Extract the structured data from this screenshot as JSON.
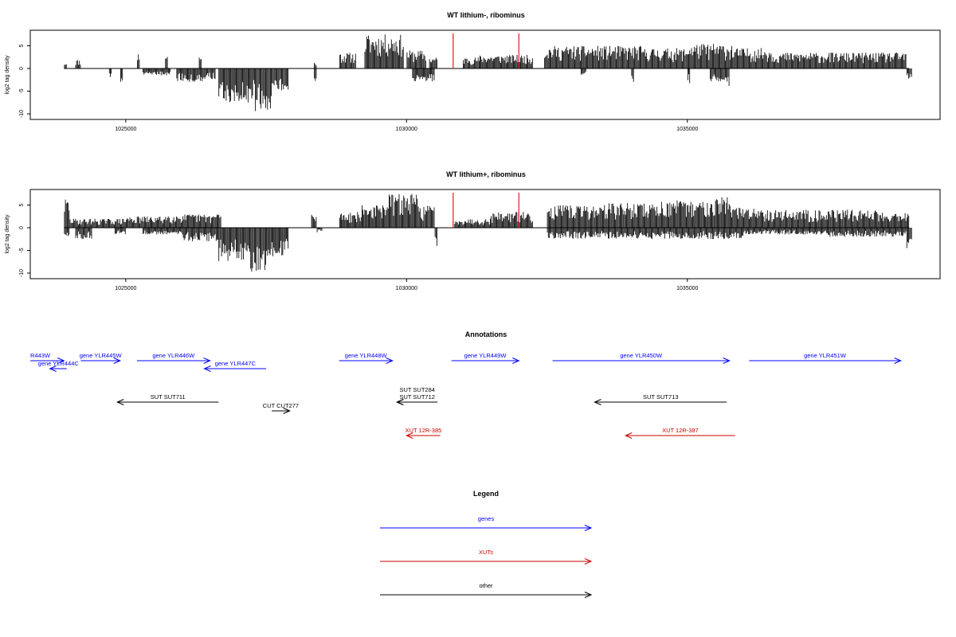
{
  "chart_data": [
    {
      "type": "bar",
      "title": "WT lithium-, ribominus",
      "ylabel": "log2 tag density",
      "xlabel": "",
      "xlim": [
        1023300,
        1039500
      ],
      "ylim": [
        -11,
        8.5
      ],
      "x_ticks": [
        "1025000",
        "1030000",
        "1035000"
      ],
      "y_ticks": [
        "5",
        "0",
        "-5",
        "-10"
      ],
      "grid": false,
      "markers": [
        1030830,
        1032000
      ],
      "forward": [
        [
          1023900,
          1023950,
          1.5
        ],
        [
          1024100,
          1024200,
          2.0
        ],
        [
          1025200,
          1025250,
          3.5
        ],
        [
          1025700,
          1025750,
          3.5
        ],
        [
          1026300,
          1026350,
          3.0
        ],
        [
          1028350,
          1028400,
          1.5
        ],
        [
          1028800,
          1029100,
          3.5
        ],
        [
          1029250,
          1029950,
          7.5
        ],
        [
          1030000,
          1030350,
          4.0
        ],
        [
          1030400,
          1030550,
          2.5
        ],
        [
          1031000,
          1031300,
          2.5
        ],
        [
          1031300,
          1031700,
          3.0
        ],
        [
          1031700,
          1032250,
          3.0
        ],
        [
          1032450,
          1033200,
          5.0
        ],
        [
          1033200,
          1034200,
          5.0
        ],
        [
          1034200,
          1035000,
          4.5
        ],
        [
          1035000,
          1035800,
          5.5
        ],
        [
          1035800,
          1036500,
          4.5
        ],
        [
          1036500,
          1037500,
          3.5
        ],
        [
          1037500,
          1038300,
          3.5
        ],
        [
          1038300,
          1038900,
          3.5
        ]
      ],
      "reverse": [
        [
          1024700,
          1024750,
          -2.0
        ],
        [
          1024900,
          1024950,
          -3.0
        ],
        [
          1025300,
          1025800,
          -1.5
        ],
        [
          1025900,
          1026400,
          -3.0
        ],
        [
          1026400,
          1026600,
          -2.5
        ],
        [
          1026650,
          1027300,
          -7.5
        ],
        [
          1027300,
          1027600,
          -9.5
        ],
        [
          1027600,
          1027900,
          -5.0
        ],
        [
          1028350,
          1028400,
          -4.0
        ],
        [
          1030100,
          1030500,
          -3.0
        ],
        [
          1033100,
          1033200,
          -1.5
        ],
        [
          1034000,
          1034050,
          -3.5
        ],
        [
          1035000,
          1035050,
          -3.5
        ],
        [
          1035400,
          1035700,
          -3.0
        ],
        [
          1035700,
          1035750,
          -4.0
        ],
        [
          1038900,
          1039000,
          -3.5
        ]
      ]
    },
    {
      "type": "bar",
      "title": "WT lithium+, ribominus",
      "ylabel": "log2 tag density",
      "xlabel": "",
      "xlim": [
        1023300,
        1039500
      ],
      "ylim": [
        -11,
        8.5
      ],
      "x_ticks": [
        "1025000",
        "1030000",
        "1035000"
      ],
      "y_ticks": [
        "5",
        "0",
        "-5",
        "-10"
      ],
      "grid": false,
      "markers": [
        1030830,
        1032000
      ],
      "forward": [
        [
          1023900,
          1024000,
          6.5
        ],
        [
          1024000,
          1025000,
          2.0
        ],
        [
          1025000,
          1025700,
          2.5
        ],
        [
          1025700,
          1026600,
          3.0
        ],
        [
          1026600,
          1026700,
          3.5
        ],
        [
          1028300,
          1028400,
          3.0
        ],
        [
          1028800,
          1029200,
          3.5
        ],
        [
          1029200,
          1029600,
          5.0
        ],
        [
          1029600,
          1030200,
          7.5
        ],
        [
          1030200,
          1030500,
          5.0
        ],
        [
          1030850,
          1031500,
          2.0
        ],
        [
          1031500,
          1032250,
          3.5
        ],
        [
          1032500,
          1033500,
          5.0
        ],
        [
          1033500,
          1034500,
          5.5
        ],
        [
          1034500,
          1035300,
          6.0
        ],
        [
          1035300,
          1035800,
          7.0
        ],
        [
          1035800,
          1036500,
          4.5
        ],
        [
          1036500,
          1037500,
          4.0
        ],
        [
          1037500,
          1038400,
          4.0
        ],
        [
          1038400,
          1038950,
          3.5
        ]
      ],
      "reverse": [
        [
          1023900,
          1024000,
          -2.0
        ],
        [
          1024100,
          1024400,
          -2.5
        ],
        [
          1024800,
          1025000,
          -1.5
        ],
        [
          1025300,
          1026000,
          -1.5
        ],
        [
          1026000,
          1026650,
          -3.0
        ],
        [
          1026650,
          1027200,
          -7.5
        ],
        [
          1027200,
          1027500,
          -10.0
        ],
        [
          1027500,
          1027900,
          -6.5
        ],
        [
          1028400,
          1028500,
          -1.0
        ],
        [
          1030500,
          1030550,
          -4.5
        ],
        [
          1032500,
          1033500,
          -2.5
        ],
        [
          1033500,
          1035000,
          -2.5
        ],
        [
          1035000,
          1036000,
          -2.5
        ],
        [
          1036000,
          1037500,
          -1.5
        ],
        [
          1037500,
          1038900,
          -2.0
        ],
        [
          1038900,
          1039000,
          -4.5
        ]
      ]
    },
    {
      "type": "annotation-track",
      "title": "Annotations",
      "features": [
        {
          "label": "R443W",
          "category": "genes",
          "color": "#0000ff",
          "x1": 1023300,
          "x2": 1023900,
          "dir": "+",
          "row": 0,
          "label_pos": "left"
        },
        {
          "label": "gene YLR445W",
          "category": "genes",
          "color": "#0000ff",
          "x1": 1024200,
          "x2": 1024900,
          "dir": "+",
          "row": 0
        },
        {
          "label": "gene YLR444C",
          "category": "genes",
          "color": "#0000ff",
          "x1": 1023650,
          "x2": 1023950,
          "dir": "-",
          "row": 1
        },
        {
          "label": "gene YLR446W",
          "category": "genes",
          "color": "#0000ff",
          "x1": 1025200,
          "x2": 1026500,
          "dir": "+",
          "row": 0
        },
        {
          "label": "gene YLR447C",
          "category": "genes",
          "color": "#0000ff",
          "x1": 1026400,
          "x2": 1027500,
          "dir": "-",
          "row": 1
        },
        {
          "label": "gene YLR448W",
          "category": "genes",
          "color": "#0000ff",
          "x1": 1028800,
          "x2": 1029750,
          "dir": "+",
          "row": 0
        },
        {
          "label": "gene YLR449W",
          "category": "genes",
          "color": "#0000ff",
          "x1": 1030800,
          "x2": 1032000,
          "dir": "+",
          "row": 0
        },
        {
          "label": "gene YLR450W",
          "category": "genes",
          "color": "#0000ff",
          "x1": 1032600,
          "x2": 1035750,
          "dir": "+",
          "row": 0
        },
        {
          "label": "gene YLR451W",
          "category": "genes",
          "color": "#0000ff",
          "x1": 1036100,
          "x2": 1038800,
          "dir": "+",
          "row": 0
        },
        {
          "label": "SUT SUT711",
          "category": "other",
          "color": "#000000",
          "x1": 1024850,
          "x2": 1026650,
          "dir": "-",
          "row": 2
        },
        {
          "label": "CUT CUT277",
          "category": "other",
          "color": "#000000",
          "x1": 1027600,
          "x2": 1027920,
          "dir": "+",
          "row": 3
        },
        {
          "label": "SUT SUT284",
          "category": "other",
          "color": "#000000",
          "x1": 1029830,
          "x2": 1030550,
          "dir": "-",
          "row": 2,
          "label_pos": "upper"
        },
        {
          "label": "SUT SUT712",
          "category": "other",
          "color": "#000000",
          "x1": 1029830,
          "x2": 1030550,
          "dir": "-",
          "row": 2
        },
        {
          "label": "SUT SUT713",
          "category": "other",
          "color": "#000000",
          "x1": 1033350,
          "x2": 1035700,
          "dir": "-",
          "row": 2
        },
        {
          "label": "XUT 12R-385",
          "category": "XUTs",
          "color": "#cc0000",
          "x1": 1030000,
          "x2": 1030600,
          "dir": "-",
          "row": 4
        },
        {
          "label": "XUT 12R-387",
          "category": "XUTs",
          "color": "#cc0000",
          "x1": 1033900,
          "x2": 1035850,
          "dir": "-",
          "row": 4
        }
      ]
    },
    {
      "type": "legend",
      "title": "Legend",
      "entries": [
        {
          "label": "genes",
          "color": "#0000ff"
        },
        {
          "label": "XUTs",
          "color": "#cc0000"
        },
        {
          "label": "other",
          "color": "#000000"
        }
      ]
    }
  ]
}
